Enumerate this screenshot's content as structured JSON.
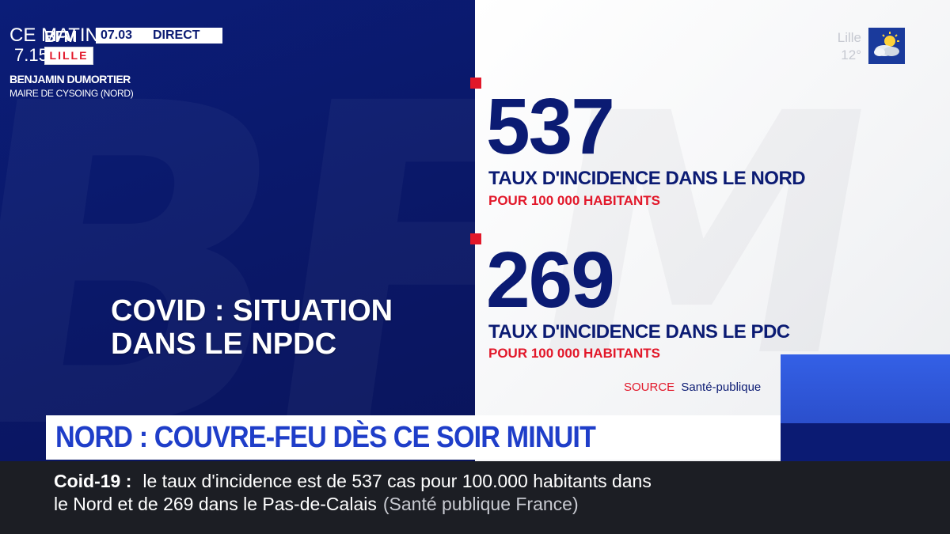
{
  "logo": {
    "brand": "BFM",
    "city": "LILLE"
  },
  "clock": {
    "time": "07.03",
    "live": "DIRECT"
  },
  "weather": {
    "city": "Lille",
    "temp": "12°",
    "icon": "sun-cloud-icon"
  },
  "title": {
    "line1": "COVID : SITUATION",
    "line2": "DANS LE NPDC"
  },
  "stats": [
    {
      "value": "537",
      "label": "TAUX D'INCIDENCE DANS LE NORD",
      "sub": "POUR 100 000 HABITANTS"
    },
    {
      "value": "269",
      "label": "TAUX D'INCIDENCE DANS LE PDC",
      "sub": "POUR 100 000 HABITANTS"
    }
  ],
  "source": {
    "label": "SOURCE",
    "value": "Santé-publique"
  },
  "guest": {
    "show": "CE MATIN",
    "time": "7.15",
    "name": "BENJAMIN DUMORTIER",
    "role": "MAIRE DE CYSOING (NORD)"
  },
  "headline": "NORD : COUVRE-FEU DÈS CE SOIR MINUIT",
  "ticker": {
    "label": "Coid-19 :",
    "line1": "le taux d'incidence est de 537 cas pour 100.000 habitants dans",
    "line2": "le Nord et de 269 dans le Pas-de-Calais",
    "source": "(Santé publique France)"
  },
  "colors": {
    "navy": "#0b1b73",
    "red": "#e2182a",
    "accent_blue": "#2e54d6",
    "headline_blue": "#1f3ec9"
  }
}
